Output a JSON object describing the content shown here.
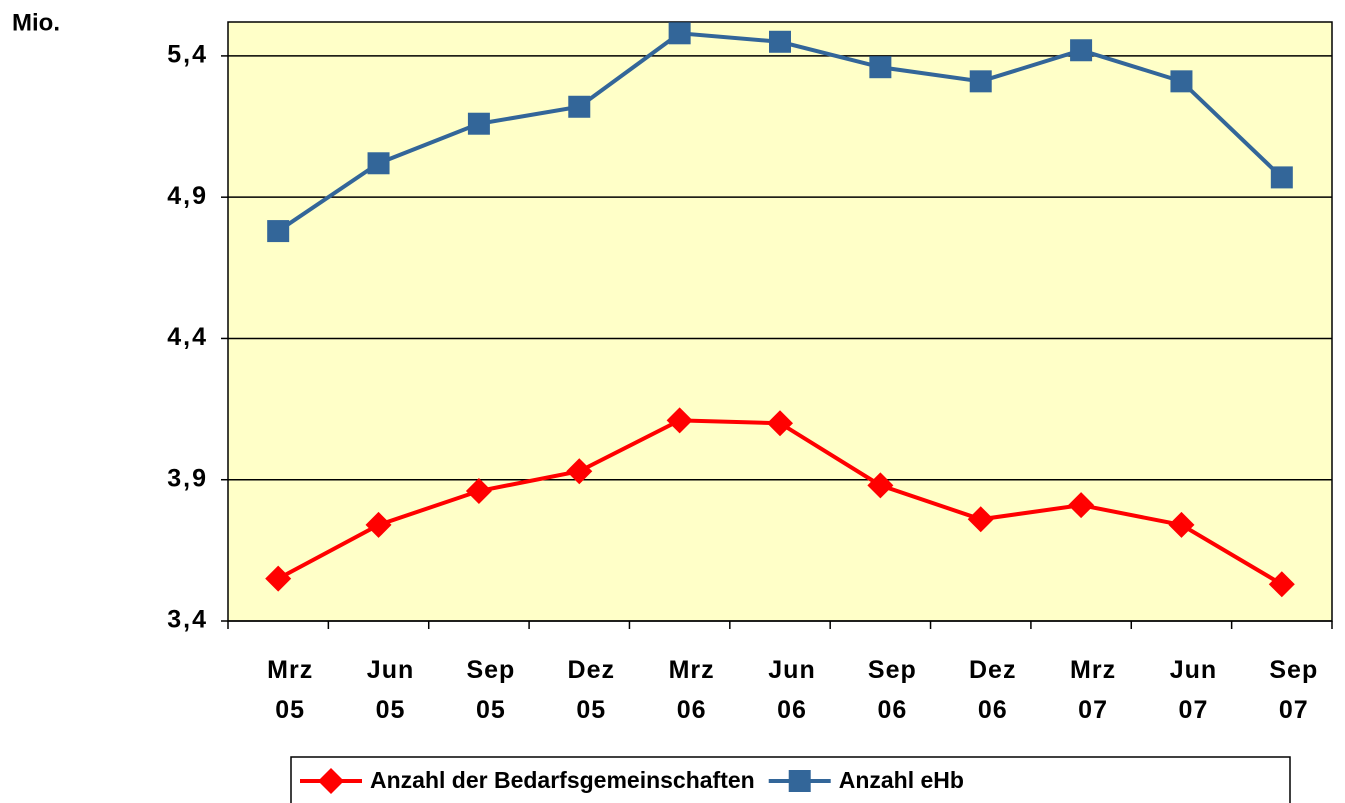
{
  "chart_data": {
    "type": "line",
    "y_label": "Mio.",
    "categories": [
      "Mrz 05",
      "Jun 05",
      "Sep 05",
      "Dez 05",
      "Mrz 06",
      "Jun 06",
      "Sep 06",
      "Dez 06",
      "Mrz 07",
      "Jun 07",
      "Sep 07"
    ],
    "series": [
      {
        "name": "Anzahl der Bedarfsgemeinschaften",
        "color": "#ff0000",
        "marker": "diamond",
        "values": [
          3.55,
          3.74,
          3.86,
          3.93,
          4.11,
          4.1,
          3.88,
          3.76,
          3.81,
          3.74,
          3.53
        ]
      },
      {
        "name": "Anzahl eHb",
        "color": "#336699",
        "marker": "square",
        "values": [
          4.78,
          5.02,
          5.16,
          5.22,
          5.48,
          5.45,
          5.36,
          5.31,
          5.42,
          5.31,
          4.97
        ]
      }
    ],
    "ylim": [
      3.4,
      5.52
    ],
    "yticks": [
      {
        "value": 3.4,
        "label": "3,4"
      },
      {
        "value": 3.9,
        "label": "3,9"
      },
      {
        "value": 4.4,
        "label": "4,4"
      },
      {
        "value": 4.9,
        "label": "4,9"
      },
      {
        "value": 5.4,
        "label": "5,4"
      }
    ],
    "grid": true,
    "background": "#ffffc8",
    "legend": "bottom"
  }
}
